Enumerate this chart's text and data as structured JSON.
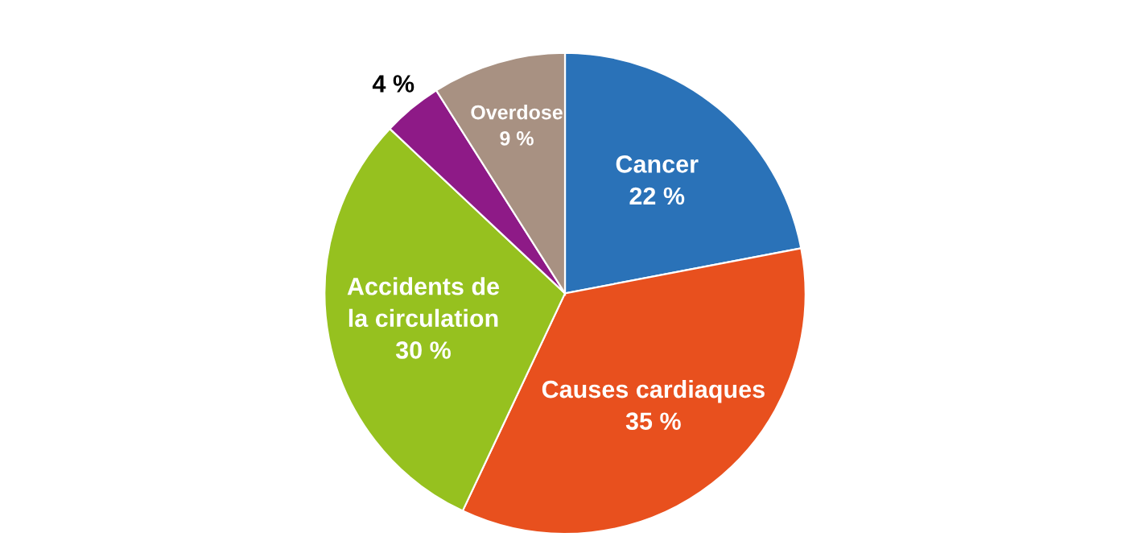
{
  "chart_data": {
    "type": "pie",
    "categories": [
      "Cancer",
      "Causes cardiaques",
      "Accidents de\nla circulation",
      null,
      "Overdose"
    ],
    "values": [
      22,
      35,
      30,
      4,
      9
    ],
    "value_labels": [
      "22 %",
      "35 %",
      "30 %",
      "4 %",
      "9 %"
    ],
    "colors": [
      "#2a72b8",
      "#e8501e",
      "#96c11f",
      "#8e1a87",
      "#a89182"
    ],
    "legend": false
  }
}
